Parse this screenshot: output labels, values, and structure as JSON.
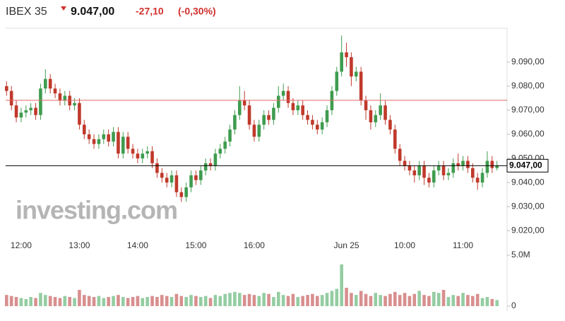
{
  "chart_data": {
    "type": "candlestick",
    "header": {
      "name": "IBEX 35",
      "price": "9.047,00",
      "change": "-27,10",
      "change_pct": "(-0,30%)"
    },
    "watermark": "investing.com",
    "categories": [
      null,
      null,
      null,
      "12:00",
      null,
      null,
      null,
      null,
      null,
      null,
      null,
      null,
      null,
      null,
      null,
      "13:00",
      null,
      null,
      null,
      null,
      null,
      null,
      null,
      null,
      null,
      null,
      null,
      "14:00",
      null,
      null,
      null,
      null,
      null,
      null,
      null,
      null,
      null,
      null,
      null,
      "15:00",
      null,
      null,
      null,
      null,
      null,
      null,
      null,
      null,
      null,
      null,
      null,
      "16:00",
      null,
      null,
      null,
      null,
      null,
      null,
      null,
      null,
      null,
      null,
      null,
      null,
      null,
      null,
      null,
      null,
      null,
      null,
      "Jun 25",
      null,
      null,
      null,
      null,
      null,
      null,
      null,
      null,
      null,
      null,
      null,
      "10:00",
      null,
      null,
      null,
      null,
      null,
      null,
      null,
      null,
      null,
      null,
      null,
      "11:00",
      null,
      null,
      null,
      null,
      null,
      null,
      null
    ],
    "open": [
      9080,
      9078,
      9072,
      9067,
      9069,
      9070,
      9071,
      9068,
      9079,
      9083,
      9079,
      9077,
      9074,
      9076,
      9072,
      9073,
      9064,
      9060,
      9058,
      9056,
      9058,
      9060,
      9057,
      9061,
      9052,
      9059,
      9054,
      9052,
      9050,
      9052,
      9053,
      9048,
      9044,
      9042,
      9040,
      9043,
      9036,
      9034,
      9038,
      9043,
      9041,
      9045,
      9048,
      9047,
      9052,
      9054,
      9057,
      9062,
      9068,
      9074,
      9072,
      9064,
      9059,
      9064,
      9068,
      9066,
      9071,
      9076,
      9078,
      9073,
      9070,
      9072,
      9068,
      9066,
      9064,
      9062,
      9065,
      9070,
      9078,
      9086,
      9094,
      9092,
      9084,
      9086,
      9074,
      9070,
      9065,
      9068,
      9072,
      9066,
      9062,
      9054,
      9049,
      9047,
      9045,
      9043,
      9047,
      9042,
      9040,
      9045,
      9047,
      9043,
      9044,
      9048,
      9047,
      9049,
      9046,
      9042,
      9040,
      9044,
      9049,
      9046
    ],
    "high": [
      9082,
      9080,
      9074,
      9071,
      9072,
      9073,
      9073,
      9081,
      9087,
      9085,
      9081,
      9079,
      9078,
      9078,
      9075,
      9075,
      9066,
      9062,
      9060,
      9060,
      9062,
      9062,
      9063,
      9063,
      9061,
      9061,
      9056,
      9054,
      9054,
      9055,
      9055,
      9050,
      9046,
      9044,
      9045,
      9045,
      9038,
      9040,
      9045,
      9045,
      9047,
      9050,
      9050,
      9054,
      9056,
      9059,
      9064,
      9070,
      9080,
      9078,
      9074,
      9066,
      9066,
      9070,
      9070,
      9073,
      9080,
      9081,
      9080,
      9075,
      9074,
      9074,
      9070,
      9068,
      9066,
      9067,
      9072,
      9080,
      9088,
      9101,
      9098,
      9094,
      9088,
      9088,
      9076,
      9072,
      9070,
      9077,
      9074,
      9068,
      9064,
      9056,
      9051,
      9049,
      9047,
      9049,
      9049,
      9044,
      9047,
      9049,
      9049,
      9046,
      9050,
      9052,
      9051,
      9051,
      9048,
      9044,
      9046,
      9053,
      9051,
      9049
    ],
    "low": [
      9076,
      9070,
      9065,
      9065,
      9067,
      9068,
      9066,
      9066,
      9077,
      9077,
      9075,
      9072,
      9072,
      9070,
      9070,
      9062,
      9058,
      9056,
      9054,
      9054,
      9056,
      9055,
      9055,
      9050,
      9050,
      9052,
      9050,
      9048,
      9048,
      9050,
      9046,
      9042,
      9040,
      9038,
      9038,
      9034,
      9032,
      9032,
      9036,
      9039,
      9039,
      9043,
      9045,
      9045,
      9050,
      9052,
      9055,
      9060,
      9066,
      9070,
      9062,
      9057,
      9057,
      9062,
      9064,
      9064,
      9069,
      9074,
      9071,
      9068,
      9068,
      9066,
      9064,
      9062,
      9060,
      9060,
      9063,
      9068,
      9076,
      9084,
      9088,
      9080,
      9082,
      9072,
      9066,
      9062,
      9063,
      9066,
      9064,
      9060,
      9052,
      9047,
      9045,
      9043,
      9040,
      9041,
      9039,
      9038,
      9038,
      9043,
      9041,
      9041,
      9042,
      9045,
      9045,
      9044,
      9040,
      9037,
      9038,
      9042,
      9044,
      9045
    ],
    "close": [
      9078,
      9072,
      9067,
      9069,
      9070,
      9071,
      9068,
      9079,
      9083,
      9079,
      9077,
      9074,
      9076,
      9072,
      9073,
      9064,
      9060,
      9058,
      9056,
      9058,
      9060,
      9057,
      9061,
      9052,
      9059,
      9054,
      9052,
      9050,
      9052,
      9053,
      9048,
      9044,
      9042,
      9040,
      9043,
      9036,
      9034,
      9038,
      9043,
      9041,
      9045,
      9048,
      9047,
      9052,
      9054,
      9057,
      9062,
      9068,
      9074,
      9072,
      9064,
      9059,
      9064,
      9068,
      9066,
      9071,
      9076,
      9078,
      9073,
      9070,
      9072,
      9068,
      9066,
      9064,
      9062,
      9065,
      9070,
      9078,
      9086,
      9094,
      9092,
      9084,
      9086,
      9074,
      9070,
      9065,
      9068,
      9072,
      9066,
      9062,
      9054,
      9049,
      9047,
      9045,
      9043,
      9047,
      9042,
      9040,
      9045,
      9047,
      9043,
      9044,
      9048,
      9047,
      9049,
      9046,
      9042,
      9040,
      9044,
      9049,
      9046,
      9047
    ],
    "volume": [
      1100000,
      1000000,
      900000,
      800000,
      700000,
      900000,
      800000,
      1300000,
      1100000,
      1000000,
      900000,
      800000,
      1000000,
      900000,
      800000,
      1600000,
      1100000,
      1000000,
      900000,
      1000000,
      800000,
      900000,
      1000000,
      1100000,
      900000,
      800000,
      900000,
      1000000,
      800000,
      900000,
      1000000,
      900000,
      1100000,
      1000000,
      900000,
      1200000,
      1000000,
      900000,
      1100000,
      1000000,
      900000,
      1000000,
      800000,
      1100000,
      1000000,
      1200000,
      1300000,
      1400000,
      1300000,
      1100000,
      1200000,
      1100000,
      1000000,
      1300000,
      1200000,
      900000,
      1400000,
      1100000,
      1000000,
      1200000,
      900000,
      1000000,
      1100000,
      1200000,
      1000000,
      1100000,
      1300000,
      1500000,
      1700000,
      4100000,
      1800000,
      1300000,
      1100000,
      1500000,
      1200000,
      1000000,
      1300000,
      1100000,
      1000000,
      1200000,
      1400000,
      1100000,
      1300000,
      1000000,
      1200000,
      1500000,
      1100000,
      1000000,
      1400000,
      1300000,
      1600000,
      900000,
      1100000,
      1000000,
      1300000,
      1100000,
      1000000,
      1200000,
      800000,
      900000,
      700000,
      600000
    ],
    "up_color": "#3f9c4f",
    "down_color": "#c0392b",
    "volume_up_color": "#94cda2",
    "volume_down_color": "#d98f8f",
    "ylim": [
      9016,
      9104
    ],
    "yticks": [
      {
        "value": 9020,
        "label": "9.020,00"
      },
      {
        "value": 9030,
        "label": "9.030,00"
      },
      {
        "value": 9040,
        "label": "9.040,00"
      },
      {
        "value": 9050,
        "label": "9.050,00"
      },
      {
        "value": 9060,
        "label": "9.060,00"
      },
      {
        "value": 9070,
        "label": "9.070,00"
      },
      {
        "value": 9080,
        "label": "9.080,00"
      },
      {
        "value": 9090,
        "label": "9.090,00"
      }
    ],
    "volume_lim": [
      0,
      5000000
    ],
    "volume_ticks": [
      0,
      {
        "value": 5000000,
        "label": "5.0M"
      }
    ],
    "prev_close_line": {
      "value": 9074.1,
      "color": "#e06666"
    },
    "price_line": {
      "value": 9047,
      "label": "9.047,00",
      "color": "#000000"
    }
  }
}
